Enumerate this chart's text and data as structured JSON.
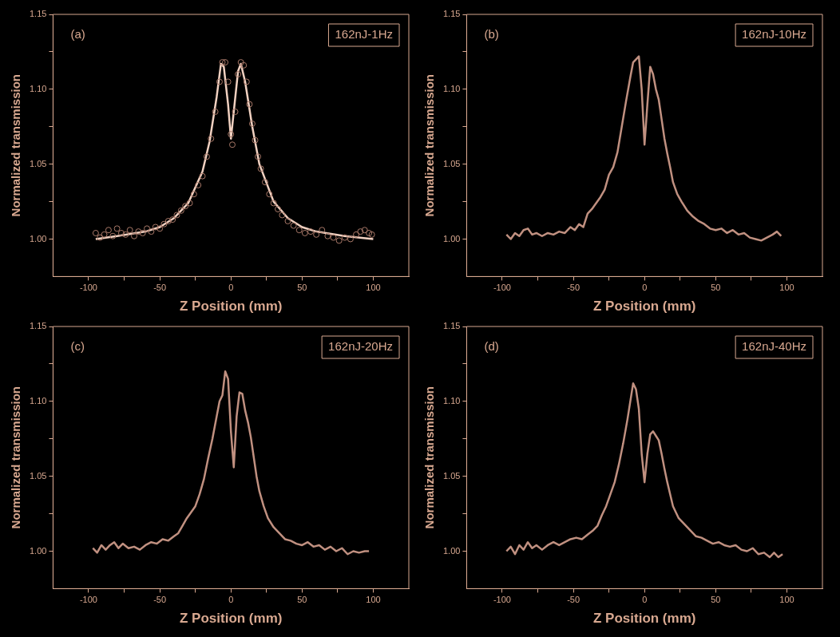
{
  "chart_data": [
    {
      "type": "scatter",
      "xlabel": "Z Position (mm)",
      "ylabel": "Normalized transmission",
      "annotations": [
        "(a)",
        "162nJ-1Hz"
      ],
      "grid": false,
      "legend": false,
      "xlim": [
        -125,
        125
      ],
      "xticks": [
        -100,
        {
          "value": -75,
          "label": null
        },
        -50,
        {
          "value": -25,
          "label": null
        },
        0,
        {
          "value": 25,
          "label": null
        },
        50,
        {
          "value": 75,
          "label": null
        },
        100
      ],
      "ylim": [
        0.975,
        1.15
      ],
      "yticks": [
        {
          "value": 1.0,
          "label": "1.00"
        },
        {
          "value": 1.025,
          "label": null
        },
        {
          "value": 1.05,
          "label": "1.05"
        },
        {
          "value": 1.075,
          "label": null
        },
        {
          "value": 1.1,
          "label": "1.10"
        },
        {
          "value": 1.125,
          "label": null
        },
        {
          "value": 1.15,
          "label": "1.15"
        }
      ],
      "series": [
        {
          "type": "scatter",
          "marker": "circle",
          "color": "#a87868",
          "x": [
            -95,
            -92,
            -89,
            -86,
            -83,
            -80,
            -77,
            -74,
            -71,
            -68,
            -65,
            -62,
            -59,
            -56,
            -53,
            -50,
            -47,
            -44,
            -41,
            -38,
            -35,
            -32,
            -29,
            -26,
            -23,
            -20,
            -17,
            -14,
            -11,
            -8,
            -6,
            -4,
            -2,
            0,
            1,
            3,
            5,
            7,
            9,
            11,
            13,
            15,
            17,
            19,
            21,
            24,
            27,
            30,
            33,
            36,
            40,
            44,
            48,
            52,
            56,
            60,
            64,
            68,
            72,
            76,
            80,
            84,
            88,
            91,
            94,
            97,
            99
          ],
          "values": [
            1.004,
            1.001,
            1.003,
            1.006,
            1.002,
            1.007,
            1.004,
            1.003,
            1.006,
            1.002,
            1.005,
            1.004,
            1.007,
            1.005,
            1.008,
            1.007,
            1.01,
            1.012,
            1.013,
            1.016,
            1.019,
            1.022,
            1.024,
            1.03,
            1.036,
            1.042,
            1.055,
            1.067,
            1.085,
            1.105,
            1.118,
            1.118,
            1.105,
            1.07,
            1.063,
            1.085,
            1.11,
            1.118,
            1.116,
            1.105,
            1.09,
            1.077,
            1.066,
            1.055,
            1.047,
            1.038,
            1.03,
            1.024,
            1.02,
            1.016,
            1.012,
            1.009,
            1.006,
            1.004,
            1.005,
            1.003,
            1.006,
            1.002,
            1.001,
            0.999,
            1.001,
            1.0,
            1.003,
            1.005,
            1.006,
            1.004,
            1.003
          ]
        },
        {
          "type": "line",
          "color": "#f0d0c0",
          "x": [
            -95,
            -80,
            -60,
            -50,
            -40,
            -30,
            -20,
            -15,
            -10,
            -7,
            -5,
            -2,
            0,
            2,
            5,
            7,
            10,
            15,
            20,
            30,
            40,
            50,
            60,
            80,
            100
          ],
          "values": [
            1.0,
            1.002,
            1.005,
            1.008,
            1.014,
            1.024,
            1.045,
            1.065,
            1.095,
            1.117,
            1.115,
            1.09,
            1.067,
            1.085,
            1.112,
            1.117,
            1.105,
            1.075,
            1.05,
            1.025,
            1.014,
            1.008,
            1.005,
            1.002,
            1.0
          ]
        }
      ]
    },
    {
      "type": "line",
      "xlabel": "Z Position (mm)",
      "ylabel": "Normalized transmission",
      "annotations": [
        "(b)",
        "162nJ-10Hz"
      ],
      "grid": false,
      "legend": false,
      "color": "#c09080",
      "xlim": [
        -125,
        125
      ],
      "xticks": [
        -100,
        {
          "value": -75,
          "label": null
        },
        -50,
        {
          "value": -25,
          "label": null
        },
        0,
        {
          "value": 25,
          "label": null
        },
        50,
        {
          "value": 75,
          "label": null
        },
        100
      ],
      "ylim": [
        0.975,
        1.15
      ],
      "yticks": [
        {
          "value": 1.0,
          "label": "1.00"
        },
        {
          "value": 1.025,
          "label": null
        },
        {
          "value": 1.05,
          "label": "1.05"
        },
        {
          "value": 1.075,
          "label": null
        },
        {
          "value": 1.1,
          "label": "1.10"
        },
        {
          "value": 1.125,
          "label": null
        },
        {
          "value": 1.15,
          "label": "1.15"
        }
      ],
      "x": [
        -97,
        -94,
        -91,
        -88,
        -85,
        -82,
        -79,
        -76,
        -72,
        -68,
        -64,
        -60,
        -56,
        -52,
        -49,
        -46,
        -43,
        -40,
        -37,
        -34,
        -31,
        -28,
        -25,
        -22,
        -19,
        -16,
        -13,
        -10,
        -8,
        -6,
        -4,
        -2,
        0,
        2,
        4,
        6,
        8,
        10,
        12,
        14,
        16,
        18,
        20,
        23,
        26,
        30,
        34,
        38,
        42,
        46,
        50,
        54,
        58,
        62,
        66,
        70,
        74,
        78,
        82,
        86,
        90,
        93,
        96
      ],
      "values": [
        1.003,
        1.0,
        1.004,
        1.002,
        1.006,
        1.007,
        1.003,
        1.004,
        1.002,
        1.004,
        1.003,
        1.005,
        1.004,
        1.008,
        1.006,
        1.01,
        1.008,
        1.017,
        1.02,
        1.024,
        1.028,
        1.033,
        1.043,
        1.048,
        1.058,
        1.075,
        1.092,
        1.108,
        1.118,
        1.12,
        1.122,
        1.1,
        1.063,
        1.09,
        1.115,
        1.11,
        1.1,
        1.093,
        1.08,
        1.067,
        1.057,
        1.048,
        1.038,
        1.03,
        1.025,
        1.019,
        1.015,
        1.012,
        1.01,
        1.007,
        1.006,
        1.007,
        1.004,
        1.006,
        1.003,
        1.004,
        1.001,
        1.0,
        0.999,
        1.001,
        1.003,
        1.005,
        1.002
      ]
    },
    {
      "type": "line",
      "xlabel": "Z Position (mm)",
      "ylabel": "Normalized transmission",
      "annotations": [
        "(c)",
        "162nJ-20Hz"
      ],
      "grid": false,
      "legend": false,
      "color": "#c09080",
      "xlim": [
        -125,
        125
      ],
      "xticks": [
        -100,
        {
          "value": -75,
          "label": null
        },
        -50,
        {
          "value": -25,
          "label": null
        },
        0,
        {
          "value": 25,
          "label": null
        },
        50,
        {
          "value": 75,
          "label": null
        },
        100
      ],
      "ylim": [
        0.975,
        1.15
      ],
      "yticks": [
        {
          "value": 1.0,
          "label": "1.00"
        },
        {
          "value": 1.025,
          "label": null
        },
        {
          "value": 1.05,
          "label": "1.05"
        },
        {
          "value": 1.075,
          "label": null
        },
        {
          "value": 1.1,
          "label": "1.10"
        },
        {
          "value": 1.125,
          "label": null
        },
        {
          "value": 1.15,
          "label": "1.15"
        }
      ],
      "x": [
        -97,
        -94,
        -91,
        -88,
        -85,
        -82,
        -79,
        -76,
        -72,
        -68,
        -64,
        -60,
        -56,
        -52,
        -48,
        -44,
        -40,
        -37,
        -34,
        -31,
        -28,
        -25,
        -22,
        -19,
        -16,
        -13,
        -10,
        -8,
        -6,
        -4,
        -2,
        0,
        2,
        4,
        6,
        8,
        10,
        12,
        14,
        16,
        18,
        20,
        23,
        26,
        30,
        34,
        38,
        42,
        46,
        50,
        54,
        58,
        62,
        66,
        70,
        74,
        78,
        82,
        86,
        90,
        94,
        97
      ],
      "values": [
        1.002,
        0.999,
        1.004,
        1.001,
        1.004,
        1.006,
        1.002,
        1.005,
        1.002,
        1.003,
        1.001,
        1.004,
        1.006,
        1.005,
        1.008,
        1.007,
        1.01,
        1.012,
        1.017,
        1.022,
        1.026,
        1.03,
        1.038,
        1.048,
        1.062,
        1.075,
        1.09,
        1.1,
        1.104,
        1.12,
        1.115,
        1.08,
        1.056,
        1.09,
        1.106,
        1.105,
        1.094,
        1.086,
        1.076,
        1.063,
        1.05,
        1.04,
        1.03,
        1.022,
        1.016,
        1.012,
        1.008,
        1.007,
        1.005,
        1.004,
        1.006,
        1.003,
        1.004,
        1.001,
        1.003,
        1.0,
        1.002,
        0.998,
        1.0,
        0.999,
        1.0,
        1.0
      ]
    },
    {
      "type": "line",
      "xlabel": "Z Position (mm)",
      "ylabel": "Normalized transmission",
      "annotations": [
        "(d)",
        "162nJ-40Hz"
      ],
      "grid": false,
      "legend": false,
      "color": "#c09080",
      "xlim": [
        -125,
        125
      ],
      "xticks": [
        -100,
        {
          "value": -75,
          "label": null
        },
        -50,
        {
          "value": -25,
          "label": null
        },
        0,
        {
          "value": 25,
          "label": null
        },
        50,
        {
          "value": 75,
          "label": null
        },
        100
      ],
      "ylim": [
        0.975,
        1.15
      ],
      "yticks": [
        {
          "value": 1.0,
          "label": "1.00"
        },
        {
          "value": 1.025,
          "label": null
        },
        {
          "value": 1.05,
          "label": "1.05"
        },
        {
          "value": 1.075,
          "label": null
        },
        {
          "value": 1.1,
          "label": "1.10"
        },
        {
          "value": 1.125,
          "label": null
        },
        {
          "value": 1.15,
          "label": "1.15"
        }
      ],
      "x": [
        -97,
        -94,
        -91,
        -88,
        -85,
        -82,
        -79,
        -76,
        -72,
        -68,
        -64,
        -60,
        -56,
        -52,
        -48,
        -44,
        -40,
        -36,
        -33,
        -30,
        -27,
        -24,
        -21,
        -18,
        -15,
        -12,
        -10,
        -8,
        -6,
        -4,
        -2,
        0,
        2,
        4,
        6,
        8,
        10,
        12,
        14,
        16,
        18,
        20,
        24,
        28,
        32,
        36,
        40,
        44,
        48,
        52,
        56,
        60,
        64,
        68,
        72,
        76,
        80,
        84,
        88,
        91,
        94,
        97
      ],
      "values": [
        1.0,
        1.003,
        0.998,
        1.004,
        1.001,
        1.006,
        1.002,
        1.004,
        1.001,
        1.004,
        1.006,
        1.004,
        1.006,
        1.008,
        1.009,
        1.008,
        1.011,
        1.014,
        1.017,
        1.024,
        1.03,
        1.038,
        1.046,
        1.058,
        1.072,
        1.088,
        1.1,
        1.112,
        1.108,
        1.095,
        1.065,
        1.046,
        1.065,
        1.078,
        1.08,
        1.077,
        1.074,
        1.065,
        1.055,
        1.046,
        1.038,
        1.03,
        1.022,
        1.018,
        1.014,
        1.01,
        1.009,
        1.007,
        1.005,
        1.006,
        1.004,
        1.003,
        1.004,
        1.001,
        1.0,
        1.002,
        0.998,
        0.999,
        0.996,
        0.999,
        0.996,
        0.998
      ]
    }
  ]
}
